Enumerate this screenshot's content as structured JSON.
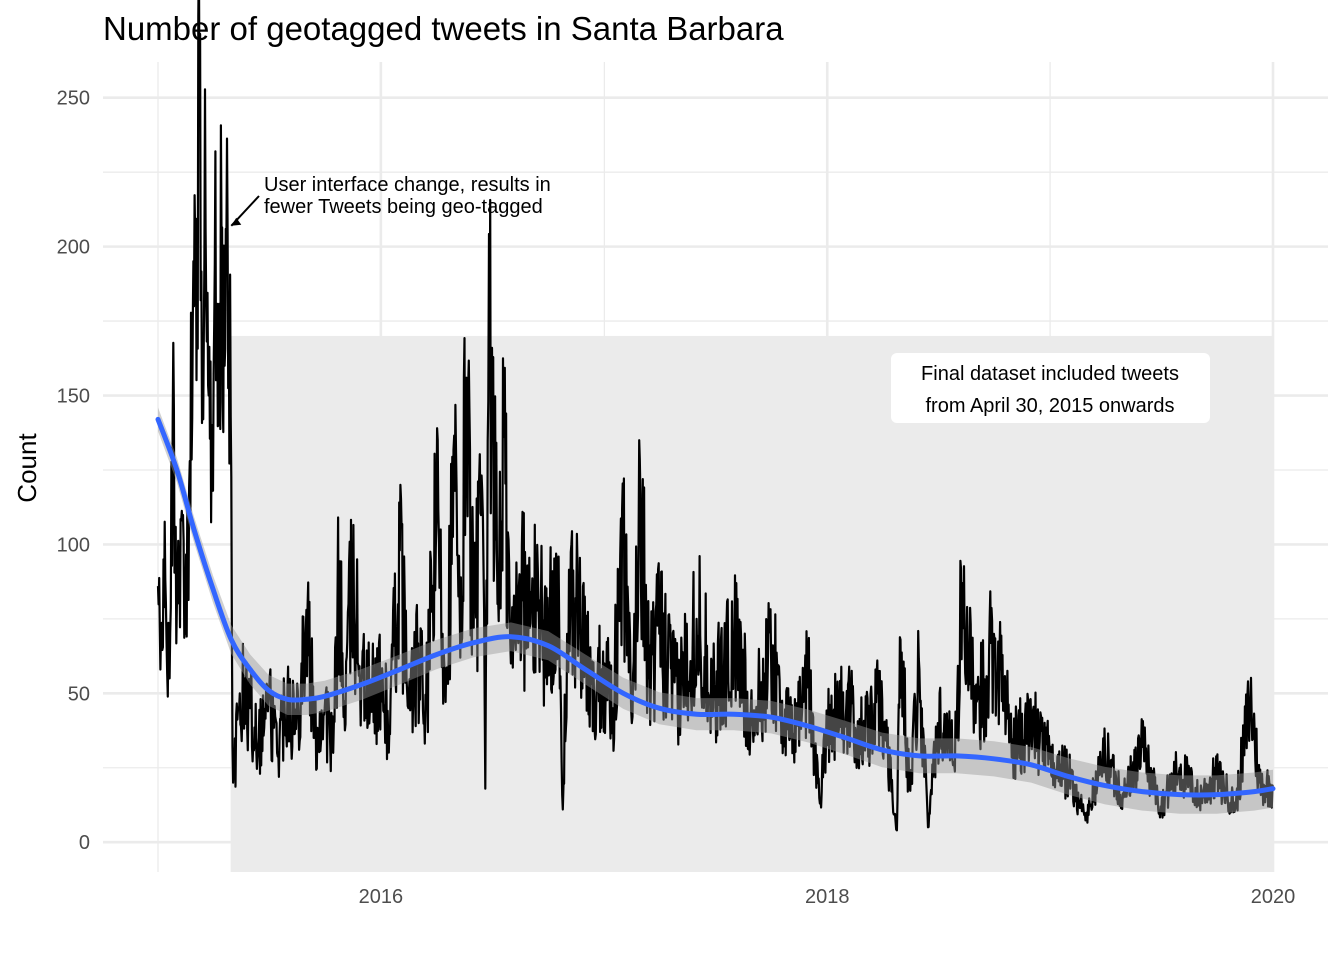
{
  "chart_data": {
    "type": "line",
    "title": "Number of geotagged tweets in Santa Barbara",
    "xlabel": "",
    "ylabel": "Count",
    "xlim": [
      "2015-01-01",
      "2020-01-01"
    ],
    "ylim": [
      -10,
      262
    ],
    "x_ticks": [
      "2016",
      "2018",
      "2020"
    ],
    "y_ticks": [
      0,
      50,
      100,
      150,
      200,
      250
    ],
    "grid": true,
    "legend": "none",
    "colors": {
      "raw_line": "#000000",
      "smooth_line": "#3366FF",
      "confidence_band": "#999999",
      "highlight_region": "#EBEBEB",
      "grid": "#EBEBEB",
      "background": "#FFFFFF"
    },
    "highlight_region": {
      "x_start": "2015-04-30",
      "x_end": "2020-01-01",
      "y_min": -10,
      "y_max": 170
    },
    "series": [
      {
        "kind": "raw-daily",
        "approximate_points": [
          [
            "2015-01-01",
            86
          ],
          [
            "2015-01-05",
            58
          ],
          [
            "2015-01-10",
            95
          ],
          [
            "2015-01-15",
            68
          ],
          [
            "2015-01-20",
            55
          ],
          [
            "2015-01-25",
            142
          ],
          [
            "2015-02-01",
            80
          ],
          [
            "2015-02-08",
            108
          ],
          [
            "2015-02-15",
            70
          ],
          [
            "2015-02-22",
            128
          ],
          [
            "2015-03-01",
            180
          ],
          [
            "2015-03-06",
            207
          ],
          [
            "2015-03-10",
            246
          ],
          [
            "2015-03-15",
            170
          ],
          [
            "2015-03-20",
            205
          ],
          [
            "2015-03-25",
            150
          ],
          [
            "2015-04-01",
            118
          ],
          [
            "2015-04-05",
            232
          ],
          [
            "2015-04-10",
            140
          ],
          [
            "2015-04-15",
            205
          ],
          [
            "2015-04-20",
            160
          ],
          [
            "2015-04-25",
            205
          ],
          [
            "2015-04-30",
            143
          ],
          [
            "2015-05-03",
            32
          ],
          [
            "2015-05-06",
            23
          ],
          [
            "2015-05-15",
            50
          ],
          [
            "2015-06-01",
            45
          ],
          [
            "2015-06-15",
            35
          ],
          [
            "2015-07-01",
            48
          ],
          [
            "2015-07-15",
            30
          ],
          [
            "2015-08-01",
            52
          ],
          [
            "2015-08-15",
            38
          ],
          [
            "2015-09-01",
            78
          ],
          [
            "2015-09-15",
            35
          ],
          [
            "2015-10-01",
            45
          ],
          [
            "2015-10-15",
            30
          ],
          [
            "2015-10-25",
            93
          ],
          [
            "2015-11-01",
            42
          ],
          [
            "2015-11-15",
            88
          ],
          [
            "2015-12-01",
            55
          ],
          [
            "2015-12-15",
            48
          ],
          [
            "2016-01-01",
            55
          ],
          [
            "2016-01-15",
            38
          ],
          [
            "2016-02-01",
            98
          ],
          [
            "2016-02-15",
            45
          ],
          [
            "2016-03-01",
            60
          ],
          [
            "2016-03-15",
            45
          ],
          [
            "2016-04-01",
            108
          ],
          [
            "2016-04-15",
            58
          ],
          [
            "2016-05-01",
            118
          ],
          [
            "2016-05-10",
            62
          ],
          [
            "2016-05-20",
            156
          ],
          [
            "2016-06-01",
            72
          ],
          [
            "2016-06-15",
            118
          ],
          [
            "2016-06-20",
            18
          ],
          [
            "2016-06-25",
            148
          ],
          [
            "2016-07-01",
            166
          ],
          [
            "2016-07-10",
            80
          ],
          [
            "2016-07-20",
            136
          ],
          [
            "2016-08-01",
            60
          ],
          [
            "2016-08-15",
            90
          ],
          [
            "2016-09-01",
            72
          ],
          [
            "2016-09-15",
            82
          ],
          [
            "2016-10-01",
            65
          ],
          [
            "2016-10-15",
            95
          ],
          [
            "2016-10-25",
            11
          ],
          [
            "2016-11-01",
            70
          ],
          [
            "2016-11-15",
            82
          ],
          [
            "2016-12-01",
            60
          ],
          [
            "2016-12-15",
            50
          ],
          [
            "2017-01-01",
            60
          ],
          [
            "2017-01-15",
            45
          ],
          [
            "2017-02-01",
            100
          ],
          [
            "2017-02-15",
            40
          ],
          [
            "2017-03-01",
            117
          ],
          [
            "2017-03-15",
            55
          ],
          [
            "2017-04-01",
            70
          ],
          [
            "2017-05-01",
            48
          ],
          [
            "2017-06-01",
            75
          ],
          [
            "2017-07-01",
            50
          ],
          [
            "2017-08-01",
            68
          ],
          [
            "2017-09-01",
            40
          ],
          [
            "2017-10-01",
            62
          ],
          [
            "2017-11-01",
            35
          ],
          [
            "2017-12-01",
            55
          ],
          [
            "2017-12-20",
            13
          ],
          [
            "2018-01-01",
            42
          ],
          [
            "2018-02-01",
            45
          ],
          [
            "2018-03-01",
            35
          ],
          [
            "2018-04-01",
            48
          ],
          [
            "2018-04-25",
            4
          ],
          [
            "2018-05-01",
            68
          ],
          [
            "2018-05-15",
            20
          ],
          [
            "2018-06-01",
            58
          ],
          [
            "2018-06-15",
            5
          ],
          [
            "2018-07-01",
            40
          ],
          [
            "2018-08-01",
            35
          ],
          [
            "2018-08-10",
            87
          ],
          [
            "2018-09-01",
            40
          ],
          [
            "2018-10-01",
            70
          ],
          [
            "2018-11-01",
            32
          ],
          [
            "2018-12-01",
            40
          ],
          [
            "2019-01-01",
            28
          ],
          [
            "2019-02-01",
            22
          ],
          [
            "2019-03-01",
            8
          ],
          [
            "2019-04-01",
            30
          ],
          [
            "2019-05-01",
            15
          ],
          [
            "2019-06-01",
            32
          ],
          [
            "2019-07-01",
            12
          ],
          [
            "2019-08-01",
            25
          ],
          [
            "2019-09-01",
            15
          ],
          [
            "2019-10-01",
            22
          ],
          [
            "2019-11-01",
            12
          ],
          [
            "2019-11-25",
            48
          ],
          [
            "2019-12-10",
            20
          ],
          [
            "2020-01-01",
            18
          ]
        ]
      },
      {
        "kind": "smooth",
        "points": [
          [
            "2015-01-01",
            142
          ],
          [
            "2015-02-01",
            125
          ],
          [
            "2015-03-01",
            105
          ],
          [
            "2015-04-01",
            85
          ],
          [
            "2015-05-01",
            68
          ],
          [
            "2015-06-01",
            58
          ],
          [
            "2015-07-01",
            51
          ],
          [
            "2015-08-01",
            48
          ],
          [
            "2015-09-01",
            48
          ],
          [
            "2015-10-01",
            49
          ],
          [
            "2015-12-01",
            53
          ],
          [
            "2016-02-01",
            58
          ],
          [
            "2016-04-01",
            63
          ],
          [
            "2016-06-01",
            67
          ],
          [
            "2016-08-01",
            69
          ],
          [
            "2016-10-01",
            66
          ],
          [
            "2016-12-01",
            58
          ],
          [
            "2017-02-01",
            50
          ],
          [
            "2017-04-01",
            45
          ],
          [
            "2017-06-01",
            43
          ],
          [
            "2017-08-01",
            43
          ],
          [
            "2017-10-01",
            42
          ],
          [
            "2017-12-01",
            39
          ],
          [
            "2018-02-01",
            35
          ],
          [
            "2018-04-01",
            31
          ],
          [
            "2018-06-01",
            29
          ],
          [
            "2018-08-01",
            29
          ],
          [
            "2018-10-01",
            28
          ],
          [
            "2018-12-01",
            26
          ],
          [
            "2019-02-01",
            22
          ],
          [
            "2019-04-01",
            19
          ],
          [
            "2019-06-01",
            17
          ],
          [
            "2019-08-01",
            16
          ],
          [
            "2019-10-01",
            16
          ],
          [
            "2019-12-01",
            17
          ],
          [
            "2020-01-01",
            18
          ]
        ]
      }
    ],
    "annotations": [
      {
        "id": "ui-change",
        "lines": [
          "User interface change, results in",
          "fewer Tweets being geo-tagged"
        ],
        "arrow_to": [
          "2015-05-01",
          207
        ]
      },
      {
        "id": "final-dataset",
        "lines": [
          "Final dataset included tweets",
          "from April 30, 2015 onwards"
        ]
      }
    ]
  }
}
